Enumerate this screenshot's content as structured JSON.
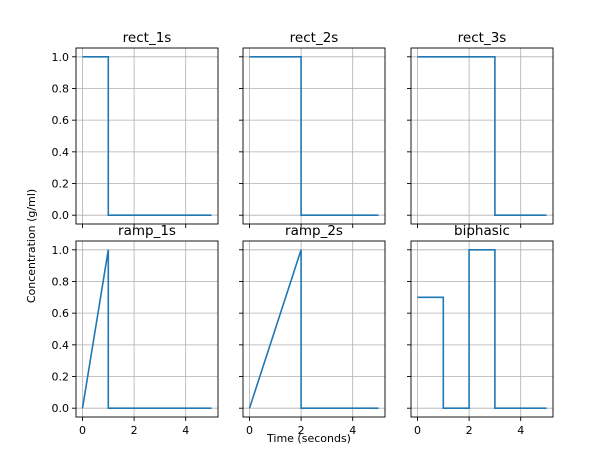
{
  "figure": {
    "xlabel": "Time (seconds)",
    "ylabel": "Concentration (g/ml)"
  },
  "chart_data": [
    {
      "type": "line",
      "title": "rect_1s",
      "xlim": [
        0,
        5
      ],
      "ylim": [
        0,
        1
      ],
      "color": "#1f77b4",
      "x": [
        0,
        1,
        1,
        5
      ],
      "y": [
        1,
        1,
        0,
        0
      ]
    },
    {
      "type": "line",
      "title": "rect_2s",
      "xlim": [
        0,
        5
      ],
      "ylim": [
        0,
        1
      ],
      "color": "#1f77b4",
      "x": [
        0,
        2,
        2,
        5
      ],
      "y": [
        1,
        1,
        0,
        0
      ]
    },
    {
      "type": "line",
      "title": "rect_3s",
      "xlim": [
        0,
        5
      ],
      "ylim": [
        0,
        1
      ],
      "color": "#1f77b4",
      "x": [
        0,
        3,
        3,
        5
      ],
      "y": [
        1,
        1,
        0,
        0
      ]
    },
    {
      "type": "line",
      "title": "ramp_1s",
      "xlim": [
        0,
        5
      ],
      "ylim": [
        0,
        1
      ],
      "color": "#1f77b4",
      "x": [
        0,
        1,
        1,
        5
      ],
      "y": [
        0,
        1,
        0,
        0
      ]
    },
    {
      "type": "line",
      "title": "ramp_2s",
      "xlim": [
        0,
        5
      ],
      "ylim": [
        0,
        1
      ],
      "color": "#1f77b4",
      "x": [
        0,
        2,
        2,
        5
      ],
      "y": [
        0,
        1,
        0,
        0
      ]
    },
    {
      "type": "line",
      "title": "biphasic",
      "xlim": [
        0,
        5
      ],
      "ylim": [
        0,
        1
      ],
      "color": "#1f77b4",
      "x": [
        0,
        1,
        1,
        2,
        2,
        3,
        3,
        5
      ],
      "y": [
        0.7,
        0.7,
        0,
        0,
        1,
        1,
        0,
        0
      ]
    }
  ],
  "axes": {
    "x_ticks": [
      0,
      2,
      4
    ],
    "x_tick_labels": [
      "0",
      "2",
      "4"
    ],
    "y_ticks": [
      0,
      0.2,
      0.4,
      0.6,
      0.8,
      1.0
    ],
    "y_tick_labels": [
      "0.0",
      "0.2",
      "0.4",
      "0.6",
      "0.8",
      "1.0"
    ],
    "grid": true,
    "sharex": true,
    "sharey": true
  }
}
